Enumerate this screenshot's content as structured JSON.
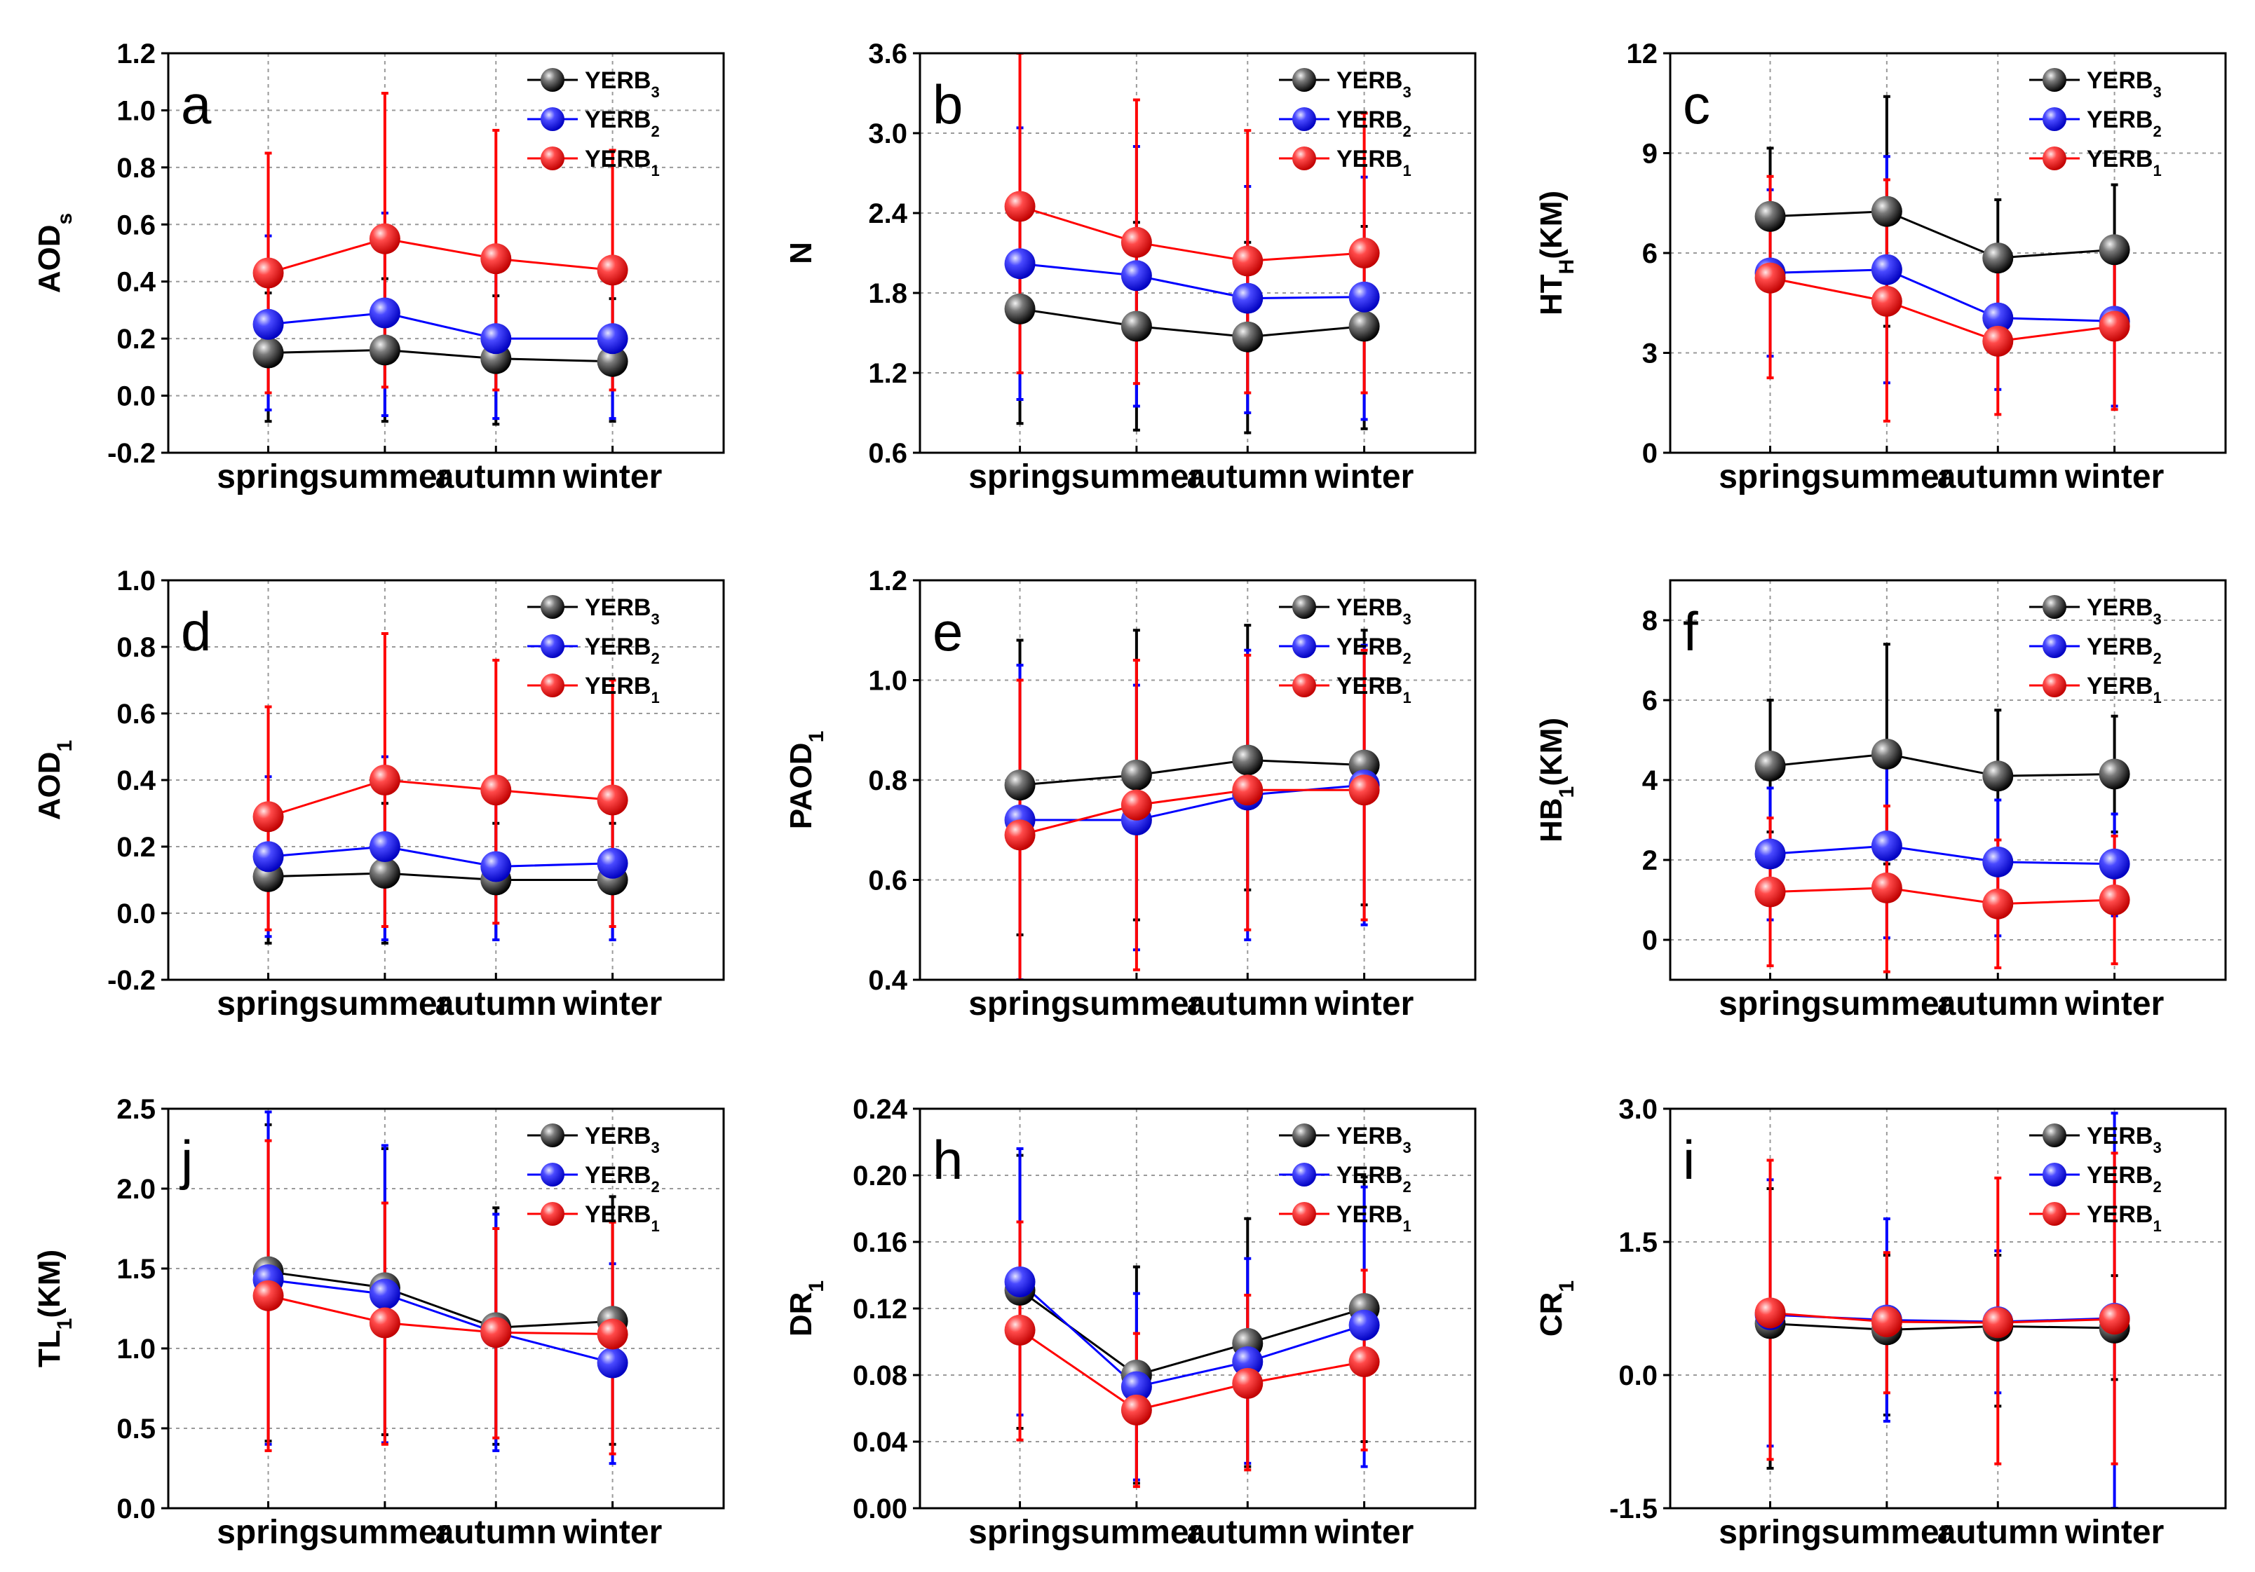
{
  "figure": {
    "categories": [
      "spring",
      "summer",
      "autumn",
      "winter"
    ],
    "series_styles": [
      {
        "name": "YERB3",
        "label": "YERB",
        "sub": "3",
        "color": "#000000",
        "light": "#9a9a9a"
      },
      {
        "name": "YERB2",
        "label": "YERB",
        "sub": "2",
        "color": "#0000ff",
        "light": "#8c8cff"
      },
      {
        "name": "YERB1",
        "label": "YERB",
        "sub": "1",
        "color": "#ff0000",
        "light": "#ff9a9a"
      }
    ]
  },
  "chart_data": [
    {
      "panel": "a",
      "type": "line",
      "ylabel": "AODs",
      "ylabel_main": "AOD",
      "ylabel_sub": "s",
      "ylim": [
        -0.2,
        1.2
      ],
      "yticks": [
        -0.2,
        0.0,
        0.2,
        0.4,
        0.6,
        0.8,
        1.0,
        1.2
      ],
      "tick_labels": [
        "-0.2",
        "0.0",
        "0.2",
        "0.4",
        "0.6",
        "0.8",
        "1.0",
        "1.2"
      ],
      "categories": [
        "spring",
        "summer",
        "autumn",
        "winter"
      ],
      "legend": [
        "YERB3",
        "YERB2",
        "YERB1"
      ],
      "series": [
        {
          "name": "YERB3",
          "values": [
            0.15,
            0.16,
            0.13,
            0.12
          ],
          "err_low": [
            -0.09,
            -0.09,
            -0.1,
            -0.09
          ],
          "err_high": [
            0.36,
            0.41,
            0.35,
            0.34
          ]
        },
        {
          "name": "YERB2",
          "values": [
            0.25,
            0.29,
            0.2,
            0.2
          ],
          "err_low": [
            -0.05,
            -0.07,
            -0.08,
            -0.08
          ],
          "err_high": [
            0.56,
            0.64,
            0.48,
            0.48
          ]
        },
        {
          "name": "YERB1",
          "values": [
            0.43,
            0.55,
            0.48,
            0.44
          ],
          "err_low": [
            0.01,
            0.03,
            0.02,
            0.02
          ],
          "err_high": [
            0.85,
            1.06,
            0.93,
            0.86
          ]
        }
      ]
    },
    {
      "panel": "b",
      "type": "line",
      "ylabel": "N",
      "ylabel_main": "N",
      "ylabel_sub": "",
      "ylim": [
        0.6,
        3.6
      ],
      "yticks": [
        0.6,
        1.2,
        1.8,
        2.4,
        3.0,
        3.6
      ],
      "tick_labels": [
        "0.6",
        "1.2",
        "1.8",
        "2.4",
        "3.0",
        "3.6"
      ],
      "categories": [
        "spring",
        "summer",
        "autumn",
        "winter"
      ],
      "legend": [
        "YERB3",
        "YERB2",
        "YERB1"
      ],
      "series": [
        {
          "name": "YERB3",
          "values": [
            1.68,
            1.55,
            1.47,
            1.55
          ],
          "err_low": [
            0.82,
            0.77,
            0.75,
            0.78
          ],
          "err_high": [
            2.52,
            2.33,
            2.18,
            2.3
          ]
        },
        {
          "name": "YERB2",
          "values": [
            2.02,
            1.93,
            1.76,
            1.77
          ],
          "err_low": [
            1.0,
            0.95,
            0.9,
            0.85
          ],
          "err_high": [
            3.04,
            2.9,
            2.6,
            2.67
          ]
        },
        {
          "name": "YERB1",
          "values": [
            2.45,
            2.18,
            2.04,
            2.1
          ],
          "err_low": [
            1.2,
            1.12,
            1.05,
            1.05
          ],
          "err_high": [
            3.6,
            3.25,
            3.02,
            3.15
          ]
        }
      ]
    },
    {
      "panel": "c",
      "type": "line",
      "ylabel": "HTH(KM)",
      "ylabel_main": "HT",
      "ylabel_sub": "H",
      "ylabel_suffix": "(KM)",
      "ylim": [
        0,
        12
      ],
      "yticks": [
        0,
        3,
        6,
        9,
        12
      ],
      "tick_labels": [
        "0",
        "3",
        "6",
        "9",
        "12"
      ],
      "categories": [
        "spring",
        "summer",
        "autumn",
        "winter"
      ],
      "legend": [
        "YERB3",
        "YERB2",
        "YERB1"
      ],
      "series": [
        {
          "name": "YERB3",
          "values": [
            7.1,
            7.25,
            5.85,
            6.1
          ],
          "err_low": [
            4.9,
            3.8,
            4.1,
            4.2
          ],
          "err_high": [
            9.15,
            10.7,
            7.6,
            8.05
          ]
        },
        {
          "name": "YERB2",
          "values": [
            5.4,
            5.5,
            4.05,
            3.95
          ],
          "err_low": [
            2.9,
            2.1,
            1.9,
            1.4
          ],
          "err_high": [
            7.9,
            8.9,
            6.2,
            6.3
          ]
        },
        {
          "name": "YERB1",
          "values": [
            5.25,
            4.55,
            3.35,
            3.8
          ],
          "err_low": [
            2.25,
            0.95,
            1.15,
            1.3
          ],
          "err_high": [
            8.3,
            8.2,
            5.5,
            6.2
          ]
        }
      ]
    },
    {
      "panel": "d",
      "type": "line",
      "ylabel": "AOD1",
      "ylabel_main": "AOD",
      "ylabel_sub": "1",
      "ylim": [
        -0.2,
        1.0
      ],
      "yticks": [
        -0.2,
        0.0,
        0.2,
        0.4,
        0.6,
        0.8,
        1.0
      ],
      "tick_labels": [
        "-0.2",
        "0.0",
        "0.2",
        "0.4",
        "0.6",
        "0.8",
        "1.0"
      ],
      "categories": [
        "spring",
        "summer",
        "autumn",
        "winter"
      ],
      "legend": [
        "YERB3",
        "YERB2",
        "YERB1"
      ],
      "series": [
        {
          "name": "YERB3",
          "values": [
            0.11,
            0.12,
            0.1,
            0.1
          ],
          "err_low": [
            -0.09,
            -0.09,
            -0.08,
            -0.08
          ],
          "err_high": [
            0.31,
            0.33,
            0.27,
            0.27
          ]
        },
        {
          "name": "YERB2",
          "values": [
            0.17,
            0.2,
            0.14,
            0.15
          ],
          "err_low": [
            -0.07,
            -0.08,
            -0.08,
            -0.08
          ],
          "err_high": [
            0.41,
            0.47,
            0.36,
            0.37
          ]
        },
        {
          "name": "YERB1",
          "values": [
            0.29,
            0.4,
            0.37,
            0.34
          ],
          "err_low": [
            -0.05,
            -0.04,
            -0.03,
            -0.04
          ],
          "err_high": [
            0.62,
            0.84,
            0.76,
            0.7
          ]
        }
      ]
    },
    {
      "panel": "e",
      "type": "line",
      "ylabel": "PAOD1",
      "ylabel_main": "PAOD",
      "ylabel_sub": "1",
      "ylim": [
        0.4,
        1.2
      ],
      "yticks": [
        0.4,
        0.6,
        0.8,
        1.0,
        1.2
      ],
      "tick_labels": [
        "0.4",
        "0.6",
        "0.8",
        "1.0",
        "1.2"
      ],
      "categories": [
        "spring",
        "summer",
        "autumn",
        "winter"
      ],
      "legend": [
        "YERB3",
        "YERB2",
        "YERB1"
      ],
      "series": [
        {
          "name": "YERB3",
          "values": [
            0.79,
            0.81,
            0.84,
            0.83
          ],
          "err_low": [
            0.49,
            0.52,
            0.58,
            0.55
          ],
          "err_high": [
            1.08,
            1.1,
            1.11,
            1.1
          ]
        },
        {
          "name": "YERB2",
          "values": [
            0.72,
            0.72,
            0.77,
            0.79
          ],
          "err_low": [
            0.4,
            0.46,
            0.48,
            0.51
          ],
          "err_high": [
            1.03,
            0.99,
            1.06,
            1.07
          ]
        },
        {
          "name": "YERB1",
          "values": [
            0.69,
            0.75,
            0.78,
            0.78
          ],
          "err_low": [
            0.39,
            0.42,
            0.5,
            0.52
          ],
          "err_high": [
            1.0,
            1.04,
            1.05,
            1.06
          ]
        }
      ]
    },
    {
      "panel": "f",
      "type": "line",
      "ylabel": "HB1(KM)",
      "ylabel_main": "HB",
      "ylabel_sub": "1",
      "ylabel_suffix": "(KM)",
      "ylim": [
        -1,
        9
      ],
      "yticks": [
        0,
        2,
        4,
        6,
        8
      ],
      "tick_labels": [
        "0",
        "2",
        "4",
        "6",
        "8"
      ],
      "categories": [
        "spring",
        "summer",
        "autumn",
        "winter"
      ],
      "legend": [
        "YERB3",
        "YERB2",
        "YERB1"
      ],
      "series": [
        {
          "name": "YERB3",
          "values": [
            4.35,
            4.65,
            4.1,
            4.15
          ],
          "err_low": [
            2.7,
            1.9,
            2.5,
            2.7
          ],
          "err_high": [
            6.0,
            7.4,
            5.75,
            5.6
          ]
        },
        {
          "name": "YERB2",
          "values": [
            2.15,
            2.35,
            1.95,
            1.9
          ],
          "err_low": [
            0.5,
            0.05,
            0.1,
            0.6
          ],
          "err_high": [
            3.8,
            4.65,
            3.5,
            3.15
          ]
        },
        {
          "name": "YERB1",
          "values": [
            1.2,
            1.3,
            0.9,
            1.0
          ],
          "err_low": [
            -0.65,
            -0.8,
            -0.7,
            -0.6
          ],
          "err_high": [
            3.05,
            3.35,
            2.5,
            2.6
          ]
        }
      ]
    },
    {
      "panel": "j",
      "type": "line",
      "ylabel": "TL1(KM)",
      "ylabel_main": "TL",
      "ylabel_sub": "1",
      "ylabel_suffix": "(KM)",
      "ylim": [
        0.0,
        2.5
      ],
      "yticks": [
        0.0,
        0.5,
        1.0,
        1.5,
        2.0,
        2.5
      ],
      "tick_labels": [
        "0.0",
        "0.5",
        "1.0",
        "1.5",
        "2.0",
        "2.5"
      ],
      "categories": [
        "spring",
        "summer",
        "autumn",
        "winter"
      ],
      "legend": [
        "YERB3",
        "YERB2",
        "YERB1"
      ],
      "series": [
        {
          "name": "YERB3",
          "values": [
            1.48,
            1.38,
            1.13,
            1.17
          ],
          "err_low": [
            0.42,
            0.46,
            0.4,
            0.4
          ],
          "err_high": [
            2.4,
            2.25,
            1.88,
            1.95
          ]
        },
        {
          "name": "YERB2",
          "values": [
            1.43,
            1.34,
            1.1,
            0.91
          ],
          "err_low": [
            0.4,
            0.41,
            0.36,
            0.28
          ],
          "err_high": [
            2.48,
            2.27,
            1.84,
            1.53
          ]
        },
        {
          "name": "YERB1",
          "values": [
            1.33,
            1.16,
            1.1,
            1.09
          ],
          "err_low": [
            0.36,
            0.4,
            0.44,
            0.34
          ],
          "err_high": [
            2.3,
            1.91,
            1.75,
            1.79
          ]
        }
      ]
    },
    {
      "panel": "h",
      "type": "line",
      "ylabel": "DR1",
      "ylabel_main": "DR",
      "ylabel_sub": "1",
      "ylim": [
        0.0,
        0.24
      ],
      "yticks": [
        0.0,
        0.04,
        0.08,
        0.12,
        0.16,
        0.2,
        0.24
      ],
      "tick_labels": [
        "0.00",
        "0.04",
        "0.08",
        "0.12",
        "0.16",
        "0.20",
        "0.24"
      ],
      "categories": [
        "spring",
        "summer",
        "autumn",
        "winter"
      ],
      "legend": [
        "YERB3",
        "YERB2",
        "YERB1"
      ],
      "series": [
        {
          "name": "YERB3",
          "values": [
            0.131,
            0.08,
            0.099,
            0.12
          ],
          "err_low": [
            0.048,
            0.015,
            0.025,
            0.04
          ],
          "err_high": [
            0.212,
            0.145,
            0.174,
            0.199
          ]
        },
        {
          "name": "YERB2",
          "values": [
            0.136,
            0.073,
            0.088,
            0.11
          ],
          "err_low": [
            0.056,
            0.017,
            0.027,
            0.025
          ],
          "err_high": [
            0.216,
            0.129,
            0.15,
            0.193
          ]
        },
        {
          "name": "YERB1",
          "values": [
            0.107,
            0.059,
            0.075,
            0.088
          ],
          "err_low": [
            0.041,
            0.013,
            0.023,
            0.035
          ],
          "err_high": [
            0.172,
            0.105,
            0.128,
            0.143
          ]
        }
      ]
    },
    {
      "panel": "i",
      "type": "line",
      "ylabel": "CR1",
      "ylabel_main": "CR",
      "ylabel_sub": "1",
      "ylim": [
        -1.5,
        3.0
      ],
      "yticks": [
        -1.5,
        0.0,
        1.5,
        3.0
      ],
      "tick_labels": [
        "-1.5",
        "0.0",
        "1.5",
        "3.0"
      ],
      "categories": [
        "spring",
        "summer",
        "autumn",
        "winter"
      ],
      "legend": [
        "YERB3",
        "YERB2",
        "YERB1"
      ],
      "series": [
        {
          "name": "YERB3",
          "values": [
            0.58,
            0.51,
            0.55,
            0.53
          ],
          "err_low": [
            -1.05,
            -0.45,
            -0.35,
            -0.05
          ],
          "err_high": [
            2.1,
            1.35,
            1.35,
            1.12
          ]
        },
        {
          "name": "YERB2",
          "values": [
            0.68,
            0.62,
            0.6,
            0.64
          ],
          "err_low": [
            -0.8,
            -0.52,
            -0.2,
            -1.5
          ],
          "err_high": [
            2.2,
            1.76,
            1.4,
            2.95
          ]
        },
        {
          "name": "YERB1",
          "values": [
            0.7,
            0.6,
            0.59,
            0.63
          ],
          "err_low": [
            -0.95,
            -0.2,
            -1.0,
            -1.0
          ],
          "err_high": [
            2.42,
            1.38,
            2.22,
            2.5
          ]
        }
      ]
    }
  ]
}
